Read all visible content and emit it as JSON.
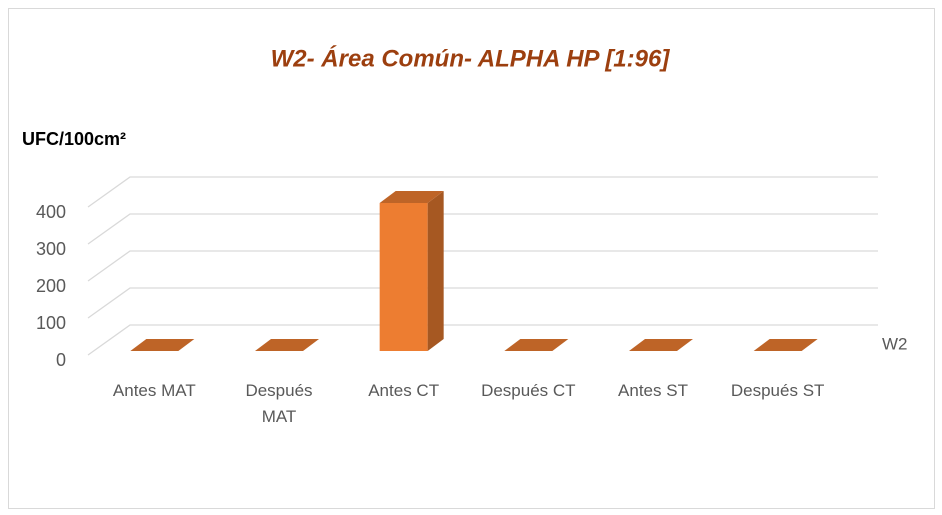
{
  "chart_data": {
    "type": "bar3d",
    "title": "W2- Área Común- ALPHA HP [1:96]",
    "y_label": "UFC/100cm²",
    "categories": [
      "Antes MAT",
      "Después MAT",
      "Antes CT",
      "Después CT",
      "Antes ST",
      "Después ST"
    ],
    "series": [
      {
        "name": "W2",
        "color": "#ed7d31",
        "values": [
          0,
          0,
          400,
          0,
          0,
          0
        ]
      }
    ],
    "ylim": [
      0,
      400
    ],
    "yticks": [
      0,
      100,
      200,
      300,
      400
    ],
    "grid": true
  }
}
